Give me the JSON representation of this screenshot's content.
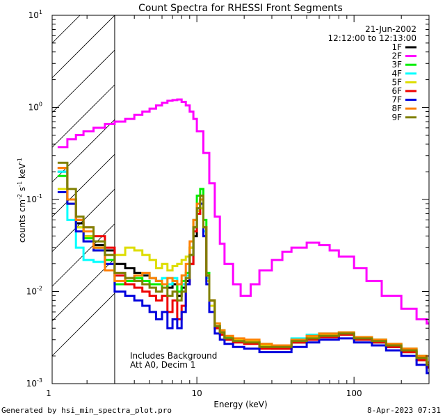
{
  "chart_data": {
    "type": "line",
    "title": "Count Spectra for RHESSI Front Segments",
    "xlabel": "Energy (keV)",
    "ylabel": "counts cm⁻² s⁻¹ keV⁻¹",
    "ylabel_parts": [
      "counts cm",
      "-2",
      " s",
      "-1",
      " keV",
      "-1"
    ],
    "xscale": "log",
    "yscale": "log",
    "xlim": [
      1.2,
      300
    ],
    "ylim": [
      0.001,
      10
    ],
    "x_ticks": [
      {
        "value": 10,
        "label": "10"
      },
      {
        "value": 100,
        "label": "100"
      }
    ],
    "x_edge_label": "1",
    "y_ticks": [
      {
        "value": 0.001,
        "base": "10",
        "exp": "-3"
      },
      {
        "value": 0.01,
        "base": "10",
        "exp": "-2"
      },
      {
        "value": 0.1,
        "base": "10",
        "exp": "-1"
      },
      {
        "value": 1,
        "base": "10",
        "exp": "0"
      },
      {
        "value": 10,
        "base": "10",
        "exp": "1"
      }
    ],
    "hatched_region": [
      1.2,
      3
    ],
    "date": "21-Jun-2002",
    "time_range": "12:12:00 to 12:13:00",
    "annotation_lines": [
      "Includes Background",
      "Att A0, Decim 1"
    ],
    "legend_position": "top-right",
    "series": [
      {
        "name": "1F",
        "color": "#000000",
        "x": [
          1.3,
          1.5,
          1.7,
          1.9,
          2.2,
          2.6,
          3.0,
          3.5,
          4,
          4.5,
          5,
          5.5,
          6,
          6.5,
          7,
          7.5,
          8,
          8.5,
          9,
          9.5,
          10,
          10.5,
          11,
          11.5,
          12,
          13,
          14,
          15,
          17,
          20,
          25,
          30,
          40,
          50,
          60,
          80,
          100,
          130,
          160,
          200,
          250,
          290
        ],
        "y": [
          0.2,
          0.1,
          0.055,
          0.04,
          0.032,
          0.028,
          0.02,
          0.018,
          0.016,
          0.015,
          0.014,
          0.013,
          0.012,
          0.011,
          0.012,
          0.009,
          0.011,
          0.013,
          0.02,
          0.04,
          0.07,
          0.1,
          0.05,
          0.015,
          0.008,
          0.004,
          0.0035,
          0.003,
          0.003,
          0.0028,
          0.0025,
          0.0024,
          0.0028,
          0.003,
          0.0032,
          0.0035,
          0.003,
          0.0028,
          0.0025,
          0.0022,
          0.0018,
          0.0015
        ]
      },
      {
        "name": "2F",
        "color": "#ff00ff",
        "x": [
          1.3,
          1.5,
          1.7,
          1.9,
          2.2,
          2.6,
          3.0,
          3.5,
          4,
          4.5,
          5,
          5.5,
          6,
          6.5,
          7,
          7.5,
          8,
          8.5,
          9,
          9.5,
          10,
          11,
          12,
          13,
          14,
          15,
          17,
          19,
          22,
          25,
          30,
          35,
          40,
          50,
          60,
          70,
          80,
          100,
          120,
          150,
          200,
          250,
          290
        ],
        "y": [
          0.37,
          0.45,
          0.5,
          0.55,
          0.6,
          0.66,
          0.7,
          0.75,
          0.83,
          0.9,
          0.97,
          1.05,
          1.12,
          1.18,
          1.2,
          1.22,
          1.15,
          1.05,
          0.9,
          0.75,
          0.55,
          0.32,
          0.15,
          0.065,
          0.033,
          0.02,
          0.012,
          0.009,
          0.012,
          0.017,
          0.022,
          0.027,
          0.03,
          0.034,
          0.032,
          0.028,
          0.024,
          0.018,
          0.013,
          0.009,
          0.0065,
          0.005,
          0.0045
        ]
      },
      {
        "name": "3F",
        "color": "#00ee00",
        "x": [
          1.3,
          1.5,
          1.7,
          1.9,
          2.2,
          2.6,
          3.0,
          3.5,
          4,
          4.5,
          5,
          5.5,
          6,
          6.5,
          7,
          7.5,
          8,
          8.5,
          9,
          9.5,
          10,
          10.5,
          11,
          11.5,
          12,
          13,
          14,
          15,
          17,
          20,
          25,
          30,
          40,
          50,
          60,
          80,
          100,
          130,
          160,
          200,
          250,
          290
        ],
        "y": [
          0.18,
          0.09,
          0.05,
          0.038,
          0.03,
          0.022,
          0.012,
          0.013,
          0.014,
          0.013,
          0.012,
          0.012,
          0.011,
          0.012,
          0.013,
          0.01,
          0.013,
          0.016,
          0.03,
          0.06,
          0.11,
          0.13,
          0.06,
          0.016,
          0.008,
          0.0045,
          0.0038,
          0.0032,
          0.003,
          0.0028,
          0.0025,
          0.0025,
          0.003,
          0.0032,
          0.0034,
          0.0036,
          0.0032,
          0.003,
          0.0027,
          0.0024,
          0.002,
          0.0017
        ]
      },
      {
        "name": "4F",
        "color": "#00ffff",
        "x": [
          1.3,
          1.5,
          1.7,
          1.9,
          2.2,
          2.6,
          3.0,
          3.5,
          4,
          4.5,
          5,
          5.5,
          6,
          6.5,
          7,
          7.5,
          8,
          8.5,
          9,
          9.5,
          10,
          10.5,
          11,
          11.5,
          12,
          13,
          14,
          15,
          17,
          20,
          25,
          30,
          40,
          50,
          60,
          80,
          100,
          130,
          160,
          200,
          250,
          290
        ],
        "y": [
          0.2,
          0.06,
          0.03,
          0.022,
          0.021,
          0.02,
          0.015,
          0.014,
          0.015,
          0.016,
          0.014,
          0.013,
          0.014,
          0.012,
          0.014,
          0.012,
          0.012,
          0.015,
          0.025,
          0.05,
          0.08,
          0.09,
          0.045,
          0.014,
          0.007,
          0.0042,
          0.0036,
          0.0031,
          0.003,
          0.0029,
          0.0027,
          0.0026,
          0.0031,
          0.0034,
          0.0035,
          0.0034,
          0.003,
          0.0028,
          0.0026,
          0.0023,
          0.0019,
          0.0016
        ]
      },
      {
        "name": "5F",
        "color": "#dddd00",
        "x": [
          1.3,
          1.5,
          1.7,
          1.9,
          2.2,
          2.6,
          3.0,
          3.5,
          4,
          4.5,
          5,
          5.5,
          6,
          6.5,
          7,
          7.5,
          8,
          8.5,
          9,
          9.5,
          10,
          10.5,
          11,
          11.5,
          12,
          13,
          14,
          15,
          17,
          20,
          25,
          30,
          40,
          50,
          60,
          80,
          100,
          130,
          160,
          200,
          250,
          290
        ],
        "y": [
          0.13,
          0.09,
          0.05,
          0.04,
          0.028,
          0.025,
          0.025,
          0.03,
          0.028,
          0.025,
          0.022,
          0.018,
          0.02,
          0.017,
          0.019,
          0.02,
          0.022,
          0.024,
          0.03,
          0.05,
          0.075,
          0.08,
          0.04,
          0.013,
          0.007,
          0.004,
          0.0035,
          0.003,
          0.003,
          0.0029,
          0.0026,
          0.0025,
          0.0029,
          0.0032,
          0.0034,
          0.0035,
          0.0031,
          0.0029,
          0.0026,
          0.0023,
          0.0019,
          0.0016
        ]
      },
      {
        "name": "6F",
        "color": "#ee0000",
        "x": [
          1.3,
          1.5,
          1.7,
          1.9,
          2.2,
          2.6,
          3.0,
          3.5,
          4,
          4.5,
          5,
          5.5,
          6,
          6.5,
          7,
          7.5,
          8,
          8.5,
          9,
          9.5,
          10,
          10.5,
          11,
          11.5,
          12,
          13,
          14,
          15,
          17,
          20,
          25,
          30,
          40,
          50,
          60,
          80,
          100,
          130,
          160,
          200,
          250,
          290
        ],
        "y": [
          0.22,
          0.1,
          0.06,
          0.05,
          0.04,
          0.03,
          0.015,
          0.012,
          0.011,
          0.01,
          0.009,
          0.008,
          0.009,
          0.006,
          0.008,
          0.005,
          0.007,
          0.012,
          0.02,
          0.045,
          0.07,
          0.1,
          0.05,
          0.015,
          0.008,
          0.004,
          0.0034,
          0.003,
          0.0028,
          0.0027,
          0.0024,
          0.0024,
          0.0028,
          0.003,
          0.0032,
          0.0034,
          0.003,
          0.0028,
          0.0025,
          0.0022,
          0.0018,
          0.0015
        ]
      },
      {
        "name": "7F",
        "color": "#0000dd",
        "x": [
          1.3,
          1.5,
          1.7,
          1.9,
          2.2,
          2.6,
          3.0,
          3.5,
          4,
          4.5,
          5,
          5.5,
          6,
          6.5,
          7,
          7.5,
          8,
          8.5,
          9,
          9.5,
          10,
          10.5,
          11,
          11.5,
          12,
          13,
          14,
          15,
          17,
          20,
          25,
          30,
          40,
          50,
          60,
          80,
          100,
          130,
          160,
          200,
          250,
          290
        ],
        "y": [
          0.12,
          0.09,
          0.045,
          0.035,
          0.028,
          0.02,
          0.01,
          0.009,
          0.008,
          0.007,
          0.006,
          0.005,
          0.006,
          0.004,
          0.005,
          0.004,
          0.006,
          0.012,
          0.025,
          0.05,
          0.08,
          0.09,
          0.04,
          0.012,
          0.006,
          0.0035,
          0.003,
          0.0027,
          0.0025,
          0.0024,
          0.0022,
          0.0022,
          0.0025,
          0.0028,
          0.003,
          0.0031,
          0.0028,
          0.0026,
          0.0023,
          0.002,
          0.0016,
          0.0013
        ]
      },
      {
        "name": "8F",
        "color": "#ff8000",
        "x": [
          1.3,
          1.5,
          1.7,
          1.9,
          2.2,
          2.6,
          3.0,
          3.5,
          4,
          4.5,
          5,
          5.5,
          6,
          6.5,
          7,
          7.5,
          8,
          8.5,
          9,
          9.5,
          10,
          10.5,
          11,
          11.5,
          12,
          13,
          14,
          15,
          17,
          20,
          25,
          30,
          40,
          50,
          60,
          80,
          100,
          130,
          160,
          200,
          250,
          290
        ],
        "y": [
          0.22,
          0.1,
          0.06,
          0.045,
          0.03,
          0.017,
          0.013,
          0.014,
          0.015,
          0.016,
          0.014,
          0.013,
          0.012,
          0.014,
          0.013,
          0.012,
          0.015,
          0.02,
          0.035,
          0.06,
          0.09,
          0.1,
          0.05,
          0.015,
          0.008,
          0.0045,
          0.0038,
          0.0033,
          0.0031,
          0.003,
          0.0027,
          0.0026,
          0.003,
          0.0033,
          0.0035,
          0.0036,
          0.0032,
          0.003,
          0.0027,
          0.0024,
          0.002,
          0.0017
        ]
      },
      {
        "name": "9F",
        "color": "#808000",
        "x": [
          1.3,
          1.5,
          1.7,
          1.9,
          2.2,
          2.6,
          3.0,
          3.5,
          4,
          4.5,
          5,
          5.5,
          6,
          6.5,
          7,
          7.5,
          8,
          8.5,
          9,
          9.5,
          10,
          10.5,
          11,
          11.5,
          12,
          13,
          14,
          15,
          17,
          20,
          25,
          30,
          40,
          50,
          60,
          80,
          100,
          130,
          160,
          200,
          250,
          290
        ],
        "y": [
          0.25,
          0.13,
          0.065,
          0.05,
          0.035,
          0.025,
          0.016,
          0.014,
          0.013,
          0.012,
          0.011,
          0.01,
          0.011,
          0.009,
          0.01,
          0.008,
          0.01,
          0.014,
          0.025,
          0.05,
          0.08,
          0.11,
          0.05,
          0.015,
          0.008,
          0.0042,
          0.0036,
          0.0031,
          0.0029,
          0.0028,
          0.0025,
          0.0025,
          0.0029,
          0.0031,
          0.0033,
          0.0035,
          0.0031,
          0.0029,
          0.0026,
          0.0023,
          0.0019,
          0.0016
        ]
      }
    ]
  },
  "footer": {
    "generated_by": "Generated by hsi_min_spectra_plot.pro",
    "timestamp": "8-Apr-2023 07:31"
  }
}
